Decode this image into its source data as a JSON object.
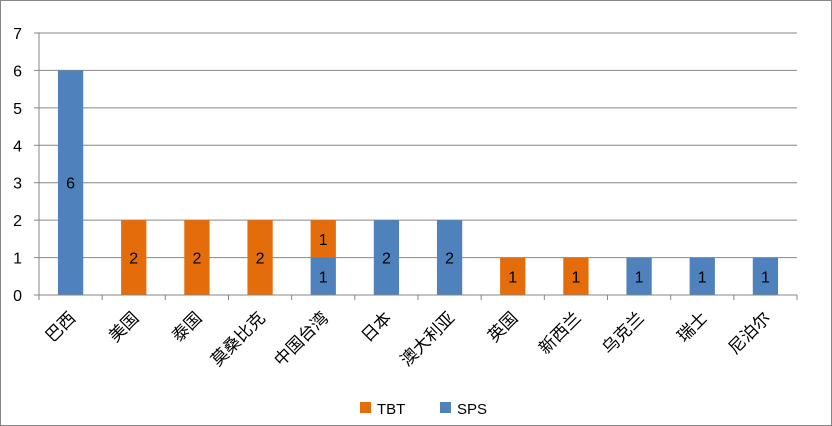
{
  "chart_data": {
    "type": "bar",
    "stacked": true,
    "title": "",
    "xlabel": "",
    "ylabel": "",
    "ylim": [
      0,
      7
    ],
    "yticks": [
      0,
      1,
      2,
      3,
      4,
      5,
      6,
      7
    ],
    "grid": true,
    "legend_position": "bottom",
    "categories": [
      "巴西",
      "美国",
      "泰国",
      "莫桑比克",
      "中国台湾",
      "日本",
      "澳大利亚",
      "英国",
      "新西兰",
      "乌克兰",
      "瑞士",
      "尼泊尔"
    ],
    "series": [
      {
        "name": "SPS",
        "color": "#4f81bd",
        "values": [
          6,
          0,
          0,
          0,
          1,
          2,
          2,
          0,
          0,
          1,
          1,
          1
        ]
      },
      {
        "name": "TBT",
        "color": "#e46c0a",
        "values": [
          0,
          2,
          2,
          2,
          1,
          0,
          0,
          1,
          1,
          0,
          0,
          0
        ]
      }
    ],
    "legend_order": [
      "TBT",
      "SPS"
    ]
  }
}
